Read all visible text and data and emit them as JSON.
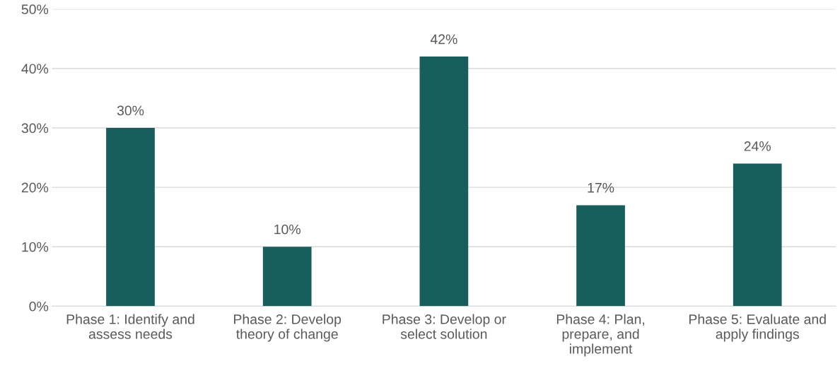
{
  "chart_data": {
    "type": "bar",
    "categories": [
      "Phase 1: Identify and\nassess needs",
      "Phase 2: Develop\ntheory of change",
      "Phase 3: Develop or\nselect solution",
      "Phase 4: Plan,\nprepare, and\nimplement",
      "Phase 5: Evaluate and\napply findings"
    ],
    "values": [
      30,
      10,
      42,
      17,
      24
    ],
    "value_labels": [
      "30%",
      "10%",
      "42%",
      "17%",
      "24%"
    ],
    "color": "#175e5c",
    "ylim": [
      0,
      50
    ],
    "yticks": [
      {
        "value": 0,
        "label": "0%"
      },
      {
        "value": 10,
        "label": "10%"
      },
      {
        "value": 20,
        "label": "20%"
      },
      {
        "value": 30,
        "label": "30%"
      },
      {
        "value": 40,
        "label": "40%"
      },
      {
        "value": 50,
        "label": "50%"
      }
    ],
    "grid": "y"
  }
}
